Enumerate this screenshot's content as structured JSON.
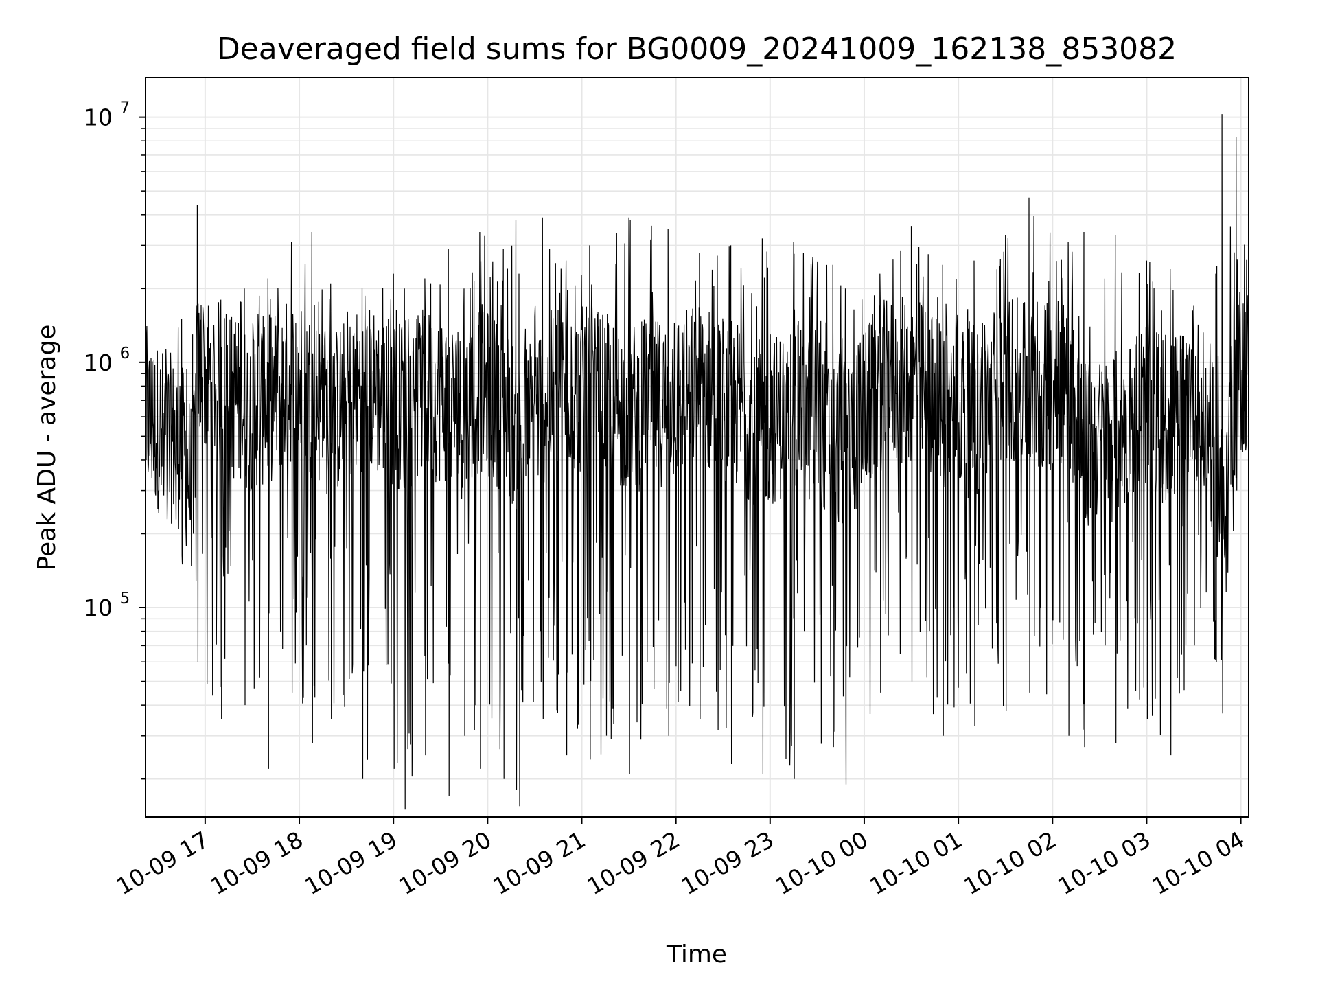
{
  "chart_data": {
    "type": "line",
    "title": "Deaveraged field sums for BG0009_20241009_162138_853082",
    "xlabel": "Time",
    "ylabel": "Peak ADU - average",
    "yscale": "log",
    "grid": true,
    "legend": "none",
    "x_range": [
      "2024-10-09 16:22",
      "2024-10-10 04:05"
    ],
    "ylim": [
      14000,
      14500000
    ],
    "x_ticks": [
      "10-09 17",
      "10-09 18",
      "10-09 19",
      "10-09 20",
      "10-09 21",
      "10-09 22",
      "10-09 23",
      "10-10 00",
      "10-10 01",
      "10-10 02",
      "10-10 03",
      "10-10 04"
    ],
    "x_tick_times": [
      "2024-10-09 17:00",
      "2024-10-09 18:00",
      "2024-10-09 19:00",
      "2024-10-09 20:00",
      "2024-10-09 21:00",
      "2024-10-09 22:00",
      "2024-10-09 23:00",
      "2024-10-10 00:00",
      "2024-10-10 01:00",
      "2024-10-10 02:00",
      "2024-10-10 03:00",
      "2024-10-10 04:00"
    ],
    "y_ticks": [
      {
        "value": 100000,
        "base": "10",
        "exp": "5"
      },
      {
        "value": 1000000,
        "base": "10",
        "exp": "6"
      },
      {
        "value": 10000000,
        "base": "10",
        "exp": "7"
      }
    ],
    "series_style": {
      "color": "#000000"
    },
    "series": [
      {
        "x": [
          "2024-10-09 16:22",
          "2024-10-09 16:45",
          "2024-10-09 16:52",
          "2024-10-09 16:55",
          "2024-10-09 17:10",
          "2024-10-09 17:25",
          "2024-10-09 17:40",
          "2024-10-09 17:55",
          "2024-10-09 18:08",
          "2024-10-09 18:20",
          "2024-10-09 18:40",
          "2024-10-09 19:00",
          "2024-10-09 19:07",
          "2024-10-09 19:20",
          "2024-10-09 19:35",
          "2024-10-09 19:45",
          "2024-10-09 19:55",
          "2024-10-09 20:10",
          "2024-10-09 20:18",
          "2024-10-09 20:20",
          "2024-10-09 20:35",
          "2024-10-09 20:50",
          "2024-10-09 21:05",
          "2024-10-09 21:30",
          "2024-10-09 21:55",
          "2024-10-09 22:15",
          "2024-10-09 22:35",
          "2024-10-09 22:55",
          "2024-10-09 23:15",
          "2024-10-09 23:40",
          "2024-10-09 23:48",
          "2024-10-10 00:10",
          "2024-10-10 00:30",
          "2024-10-10 00:50",
          "2024-10-10 01:10",
          "2024-10-10 01:30",
          "2024-10-10 01:45",
          "2024-10-10 02:10",
          "2024-10-10 02:20",
          "2024-10-10 02:40",
          "2024-10-10 03:00",
          "2024-10-10 03:15",
          "2024-10-10 03:30",
          "2024-10-10 03:44",
          "2024-10-10 03:48",
          "2024-10-10 03:57",
          "2024-10-10 04:05"
        ],
        "values": [
          600000,
          450000,
          300000,
          900000,
          800000,
          650000,
          700000,
          850000,
          750000,
          600000,
          800000,
          700000,
          650000,
          750000,
          700000,
          600000,
          800000,
          650000,
          550000,
          500000,
          700000,
          800000,
          750000,
          650000,
          700000,
          800000,
          700000,
          550000,
          650000,
          500000,
          450000,
          800000,
          850000,
          700000,
          600000,
          900000,
          750000,
          850000,
          450000,
          500000,
          700000,
          550000,
          800000,
          400000,
          250000,
          900000,
          950000
        ],
        "highs": [
          1500000,
          1500000,
          1300000,
          4400000,
          1800000,
          2000000,
          2200000,
          3100000,
          3400000,
          2100000,
          2000000,
          2300000,
          2000000,
          2200000,
          2900000,
          2000000,
          3400000,
          2900000,
          3800000,
          2300000,
          3900000,
          2600000,
          3000000,
          3900000,
          3500000,
          2800000,
          3000000,
          3200000,
          3100000,
          2500000,
          2000000,
          2300000,
          3600000,
          2500000,
          2600000,
          3300000,
          4700000,
          3100000,
          3400000,
          3300000,
          2600000,
          2400000,
          1700000,
          2300000,
          10300000,
          8300000,
          2900000
        ],
        "lows": [
          400000,
          150000,
          200000,
          60000,
          35000,
          40000,
          22000,
          45000,
          28000,
          35000,
          20000,
          22000,
          15000,
          25000,
          17000,
          30000,
          22000,
          20000,
          18000,
          15500,
          35000,
          25000,
          24000,
          21000,
          30000,
          35000,
          23000,
          21000,
          20000,
          27000,
          19000,
          45000,
          50000,
          30000,
          33000,
          38000,
          45000,
          30000,
          27000,
          28000,
          35000,
          25000,
          70000,
          60000,
          37000,
          300000,
          600000
        ]
      }
    ]
  }
}
